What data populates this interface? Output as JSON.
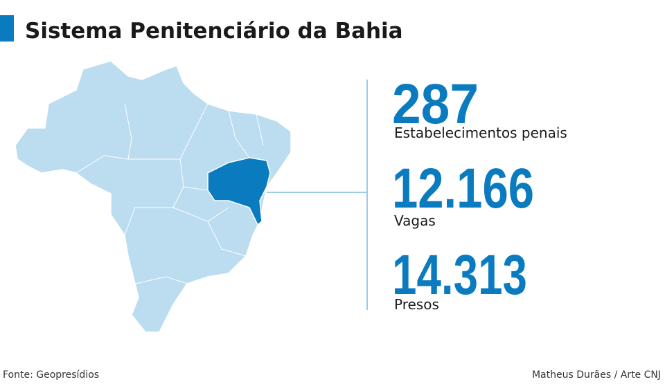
{
  "header": {
    "title": "Sistema Penitenciário da Bahia"
  },
  "stats": [
    {
      "value": "287",
      "label": "Estabelecimentos penais"
    },
    {
      "value": "12.166",
      "label": "Vagas"
    },
    {
      "value": "14.313",
      "label": "Presos"
    }
  ],
  "footer": {
    "source": "Fonte: Geopresídios",
    "credit": "Matheus Durães / Arte CNJ"
  }
}
